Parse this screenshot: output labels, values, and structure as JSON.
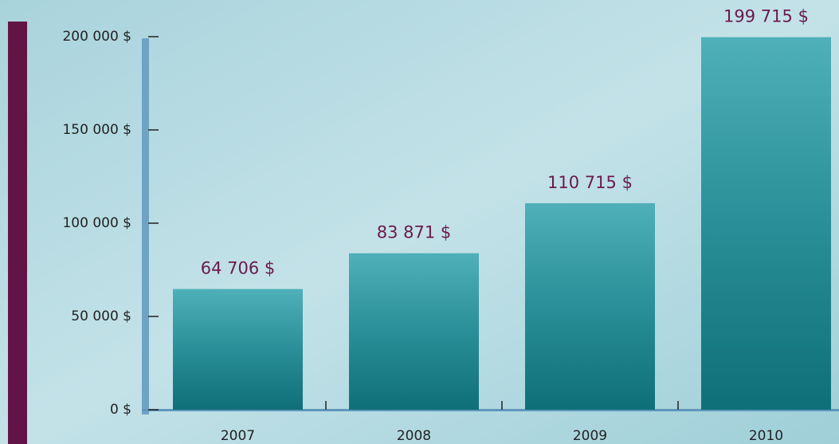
{
  "chart_data": {
    "type": "bar",
    "categories": [
      "2007",
      "2008",
      "2009",
      "2010"
    ],
    "values": [
      64706,
      83871,
      110715,
      199715
    ],
    "value_labels": [
      "64 706 $",
      "83 871 $",
      "110 715 $",
      "199 715 $"
    ],
    "color": "#2a8f98",
    "ylim": [
      0,
      200000
    ],
    "yticks": [
      {
        "value": 0,
        "label": "0 $"
      },
      {
        "value": 50000,
        "label": "50 000 $"
      },
      {
        "value": 100000,
        "label": "100 000 $"
      },
      {
        "value": 150000,
        "label": "150 000 $"
      },
      {
        "value": 200000,
        "label": "200 000 $"
      }
    ]
  }
}
